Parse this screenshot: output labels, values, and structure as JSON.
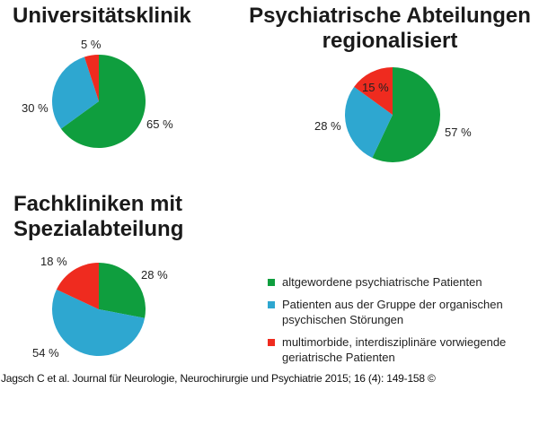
{
  "colors": {
    "green": "#0f9e3e",
    "blue": "#2ea7d0",
    "red": "#ef2b1f"
  },
  "chart_data": [
    {
      "type": "pie",
      "title": "Universitätsklinik",
      "categories": [
        "altgewordene psychiatrische Patienten",
        "Patienten aus der Gruppe der organischen psychischen Störungen",
        "multimorbide, interdisziplinäre vorwiegende geriatrische Patienten"
      ],
      "values": [
        65,
        30,
        5
      ],
      "labels": [
        "65 %",
        "30 %",
        "5 %"
      ],
      "colors": [
        "#0f9e3e",
        "#2ea7d0",
        "#ef2b1f"
      ]
    },
    {
      "type": "pie",
      "title": "Psychiatrische Abteilungen regionalisiert",
      "categories": [
        "altgewordene psychiatrische Patienten",
        "Patienten aus der Gruppe der organischen psychischen Störungen",
        "multimorbide, interdisziplinäre vorwiegende geriatrische Patienten"
      ],
      "values": [
        57,
        28,
        15
      ],
      "labels": [
        "57 %",
        "28 %",
        "15 %"
      ],
      "colors": [
        "#0f9e3e",
        "#2ea7d0",
        "#ef2b1f"
      ]
    },
    {
      "type": "pie",
      "title": "Fachkliniken mit Spezialabteilung",
      "categories": [
        "altgewordene psychiatrische Patienten",
        "Patienten aus der Gruppe der organischen psychischen Störungen",
        "multimorbide, interdisziplinäre vorwiegende geriatrische Patienten"
      ],
      "values": [
        28,
        54,
        18
      ],
      "labels": [
        "28 %",
        "54 %",
        "18 %"
      ],
      "colors": [
        "#0f9e3e",
        "#2ea7d0",
        "#ef2b1f"
      ]
    }
  ],
  "titles": {
    "chart1": "Universitätsklinik",
    "chart2_line1": "Psychiatrische Abteilungen",
    "chart2_line2": "regionalisiert",
    "chart3_line1": "Fachkliniken mit",
    "chart3_line2": "Spezialabteilung"
  },
  "labels": {
    "chart1": {
      "green": "65 %",
      "blue": "30 %",
      "red": "5 %"
    },
    "chart2": {
      "green": "57 %",
      "blue": "28 %",
      "red": "15 %"
    },
    "chart3": {
      "green": "28 %",
      "blue": "54 %",
      "red": "18 %"
    }
  },
  "legend": {
    "items": [
      {
        "label": "altgewordene psychiatrische Patienten",
        "color": "#0f9e3e"
      },
      {
        "label": "Patienten aus der Gruppe der organischen psychischen Störungen",
        "color": "#2ea7d0"
      },
      {
        "label": "multimorbide, interdisziplinäre vorwiegende geriatrische Patienten",
        "color": "#ef2b1f"
      }
    ],
    "position": "bottom-right"
  },
  "citation": "Jagsch C et al. Journal für Neurologie, Neurochirurgie und Psychiatrie 2015; 16 (4): 149-158 ©"
}
